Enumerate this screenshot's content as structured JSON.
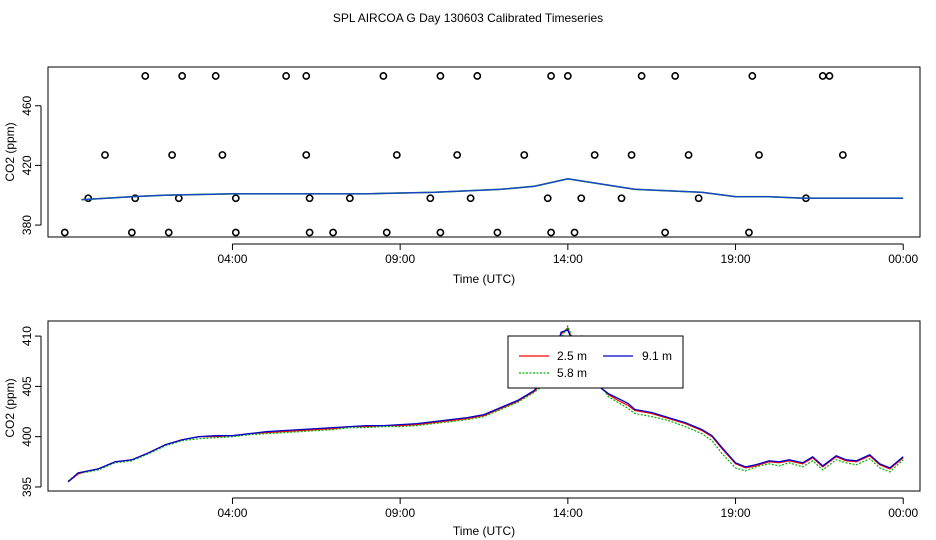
{
  "title": "SPL AIRCOA G  Day 130603  Calibrated Timeseries",
  "colors": {
    "red": "#ff0000",
    "green": "#00b000",
    "blue": "#0000cc",
    "blue_top": "#1f3fcf"
  },
  "chart_data": [
    {
      "type": "scatter",
      "xlabel": "Time (UTC)",
      "ylabel": "CO2 (ppm)",
      "xlim": [
        -1.5,
        24.5
      ],
      "ylim": [
        372,
        486
      ],
      "x_ticks": [
        4,
        9,
        14,
        19,
        24
      ],
      "x_tick_labels": [
        "04:00",
        "09:00",
        "14:00",
        "19:00",
        "00:00"
      ],
      "y_ticks": [
        380,
        420,
        460
      ],
      "y_tick_labels": [
        "380",
        "420",
        "460"
      ],
      "points": [
        [
          1.4,
          480
        ],
        [
          2.5,
          480
        ],
        [
          3.5,
          480
        ],
        [
          5.6,
          480
        ],
        [
          6.2,
          480
        ],
        [
          8.5,
          480
        ],
        [
          10.2,
          480
        ],
        [
          11.3,
          480
        ],
        [
          13.5,
          480
        ],
        [
          14.0,
          480
        ],
        [
          16.2,
          480
        ],
        [
          17.2,
          480
        ],
        [
          19.5,
          480
        ],
        [
          21.6,
          480
        ],
        [
          21.8,
          480
        ],
        [
          0.2,
          427
        ],
        [
          2.2,
          427
        ],
        [
          3.7,
          427
        ],
        [
          6.2,
          427
        ],
        [
          8.9,
          427
        ],
        [
          10.7,
          427
        ],
        [
          12.7,
          427
        ],
        [
          14.8,
          427
        ],
        [
          15.9,
          427
        ],
        [
          17.6,
          427
        ],
        [
          19.7,
          427
        ],
        [
          22.2,
          427
        ],
        [
          -0.3,
          398
        ],
        [
          1.1,
          398
        ],
        [
          2.4,
          398
        ],
        [
          4.1,
          398
        ],
        [
          6.3,
          398
        ],
        [
          7.5,
          398
        ],
        [
          9.9,
          398
        ],
        [
          11.1,
          398
        ],
        [
          13.4,
          398
        ],
        [
          14.4,
          398
        ],
        [
          15.6,
          398
        ],
        [
          17.9,
          398
        ],
        [
          21.1,
          398
        ],
        [
          -1.0,
          375
        ],
        [
          1.0,
          375
        ],
        [
          2.1,
          375
        ],
        [
          4.1,
          375
        ],
        [
          6.3,
          375
        ],
        [
          7.0,
          375
        ],
        [
          8.6,
          375
        ],
        [
          10.2,
          375
        ],
        [
          11.9,
          375
        ],
        [
          13.5,
          375
        ],
        [
          14.2,
          375
        ],
        [
          16.9,
          375
        ],
        [
          19.4,
          375
        ]
      ],
      "series": [
        {
          "name": "2.5 m",
          "x": [
            -0.5,
            1,
            2,
            4,
            6,
            8,
            10,
            12,
            13,
            14,
            16,
            18,
            19,
            20,
            21,
            22,
            23,
            24
          ],
          "y": [
            397,
            399,
            400,
            401,
            401,
            401,
            402,
            404,
            406,
            411,
            404,
            402,
            399,
            399,
            398,
            398,
            398,
            398
          ]
        }
      ]
    },
    {
      "type": "line",
      "xlabel": "Time (UTC)",
      "ylabel": "CO2 (ppm)",
      "xlim": [
        -1.5,
        24.5
      ],
      "ylim": [
        394.6,
        411.5
      ],
      "x_ticks": [
        4,
        9,
        14,
        19,
        24
      ],
      "x_tick_labels": [
        "04:00",
        "09:00",
        "14:00",
        "19:00",
        "00:00"
      ],
      "y_ticks": [
        395,
        400,
        405,
        410
      ],
      "y_tick_labels": [
        "395",
        "400",
        "405",
        "410"
      ],
      "x": [
        -0.9,
        -0.6,
        -0.3,
        0,
        0.5,
        1,
        1.5,
        2,
        2.5,
        3,
        3.5,
        4,
        4.5,
        5,
        5.5,
        6,
        6.5,
        7,
        7.5,
        8,
        8.5,
        9,
        9.5,
        10,
        10.5,
        11,
        11.5,
        12,
        12.5,
        13,
        13.3,
        13.6,
        13.8,
        14,
        14.2,
        14.4,
        14.6,
        14.8,
        15,
        15.2,
        15.5,
        15.8,
        16,
        16.5,
        17,
        17.5,
        18,
        18.3,
        18.6,
        19,
        19.3,
        19.6,
        20,
        20.3,
        20.6,
        21,
        21.3,
        21.6,
        22,
        22.3,
        22.6,
        23,
        23.3,
        23.6,
        24
      ],
      "legend": {
        "placement": "top-center",
        "entries": [
          "2.5 m",
          "9.1 m",
          "5.8 m"
        ]
      },
      "series": [
        {
          "name": "2.5 m",
          "y": [
            395.5,
            396.3,
            396.6,
            396.8,
            397.5,
            397.7,
            398.4,
            399.2,
            399.7,
            400.0,
            400.0,
            400.1,
            400.3,
            400.4,
            400.5,
            400.6,
            400.7,
            400.8,
            401.0,
            401.0,
            401.1,
            401.1,
            401.2,
            401.4,
            401.6,
            401.8,
            402.1,
            402.8,
            403.5,
            404.5,
            405.6,
            407.8,
            410.2,
            410.8,
            409.0,
            410.0,
            408.6,
            406.4,
            404.8,
            404.2,
            403.6,
            403.1,
            402.6,
            402.3,
            401.8,
            401.3,
            400.6,
            400.0,
            398.8,
            397.3,
            396.9,
            397.1,
            397.5,
            397.4,
            397.6,
            397.3,
            397.9,
            397.0,
            398.0,
            397.6,
            397.5,
            398.1,
            397.2,
            396.8,
            397.9
          ]
        },
        {
          "name": "5.8 m",
          "y": [
            395.6,
            396.4,
            396.5,
            396.7,
            397.4,
            397.6,
            398.3,
            399.1,
            399.6,
            399.8,
            399.9,
            400.0,
            400.2,
            400.3,
            400.4,
            400.5,
            400.6,
            400.7,
            400.9,
            400.9,
            401.0,
            401.0,
            401.1,
            401.3,
            401.5,
            401.7,
            402.0,
            402.7,
            403.4,
            404.4,
            405.2,
            407.2,
            409.8,
            411.0,
            409.2,
            409.6,
            408.9,
            406.8,
            405.1,
            404.0,
            403.4,
            402.8,
            402.3,
            402.0,
            401.6,
            401.0,
            400.3,
            399.6,
            398.3,
            396.9,
            396.6,
            397.0,
            397.3,
            397.1,
            397.4,
            397.0,
            397.6,
            396.7,
            397.7,
            397.4,
            397.2,
            397.8,
            396.9,
            396.5,
            397.7
          ]
        },
        {
          "name": "9.1 m",
          "y": [
            395.5,
            396.4,
            396.6,
            396.8,
            397.5,
            397.7,
            398.4,
            399.2,
            399.7,
            400.0,
            400.1,
            400.1,
            400.3,
            400.5,
            400.6,
            400.7,
            400.8,
            400.9,
            401.0,
            401.1,
            401.1,
            401.2,
            401.3,
            401.5,
            401.7,
            401.9,
            402.2,
            402.9,
            403.6,
            404.6,
            405.8,
            408.0,
            410.4,
            410.6,
            409.0,
            409.8,
            408.2,
            406.0,
            404.8,
            404.3,
            403.8,
            403.3,
            402.7,
            402.4,
            401.9,
            401.4,
            400.7,
            400.1,
            398.9,
            397.4,
            397.0,
            397.2,
            397.6,
            397.5,
            397.7,
            397.4,
            398.0,
            397.1,
            398.1,
            397.7,
            397.6,
            398.2,
            397.3,
            396.9,
            398.0
          ]
        }
      ]
    }
  ]
}
